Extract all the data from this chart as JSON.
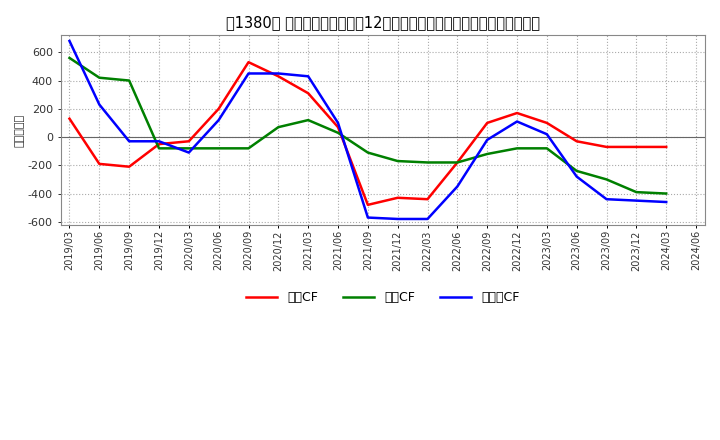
{
  "title": "　1380、 キャッシュフローの12か月移動合計の対前年同期増減額の推移",
  "title_prefix": "　1380、",
  "title_main": "キャッシュフローの12か月移動合計の対前年同期増減額の推移",
  "ylabel": "（百万円）",
  "background_color": "#ffffff",
  "plot_background": "#ffffff",
  "grid_color": "#aaaaaa",
  "ylim": [
    -620,
    720
  ],
  "yticks": [
    -600,
    -400,
    -200,
    0,
    200,
    400,
    600
  ],
  "dates": [
    "2019/03",
    "2019/06",
    "2019/09",
    "2019/12",
    "2020/03",
    "2020/06",
    "2020/09",
    "2020/12",
    "2021/03",
    "2021/06",
    "2021/09",
    "2021/12",
    "2022/03",
    "2022/06",
    "2022/09",
    "2022/12",
    "2023/03",
    "2023/06",
    "2023/09",
    "2023/12",
    "2024/03",
    "2024/06"
  ],
  "eigyo_cf": [
    130,
    -190,
    -210,
    -50,
    -30,
    200,
    530,
    430,
    310,
    70,
    -480,
    -430,
    -440,
    -180,
    100,
    170,
    100,
    -30,
    -70,
    -70,
    -70,
    null
  ],
  "toshi_cf": [
    560,
    420,
    400,
    -80,
    -80,
    -80,
    -80,
    70,
    120,
    30,
    -110,
    -170,
    -180,
    -180,
    -120,
    -80,
    -80,
    -240,
    -300,
    -390,
    -400,
    null
  ],
  "free_cf": [
    680,
    230,
    -30,
    -30,
    -110,
    120,
    450,
    450,
    430,
    100,
    -570,
    -580,
    -580,
    -350,
    -20,
    110,
    20,
    -280,
    -440,
    -450,
    -460,
    null
  ],
  "eigyo_color": "#ff0000",
  "toshi_color": "#008000",
  "free_color": "#0000ff",
  "line_width": 1.8,
  "legend_labels": [
    "営業CF",
    "投資CF",
    "フリーCF"
  ]
}
